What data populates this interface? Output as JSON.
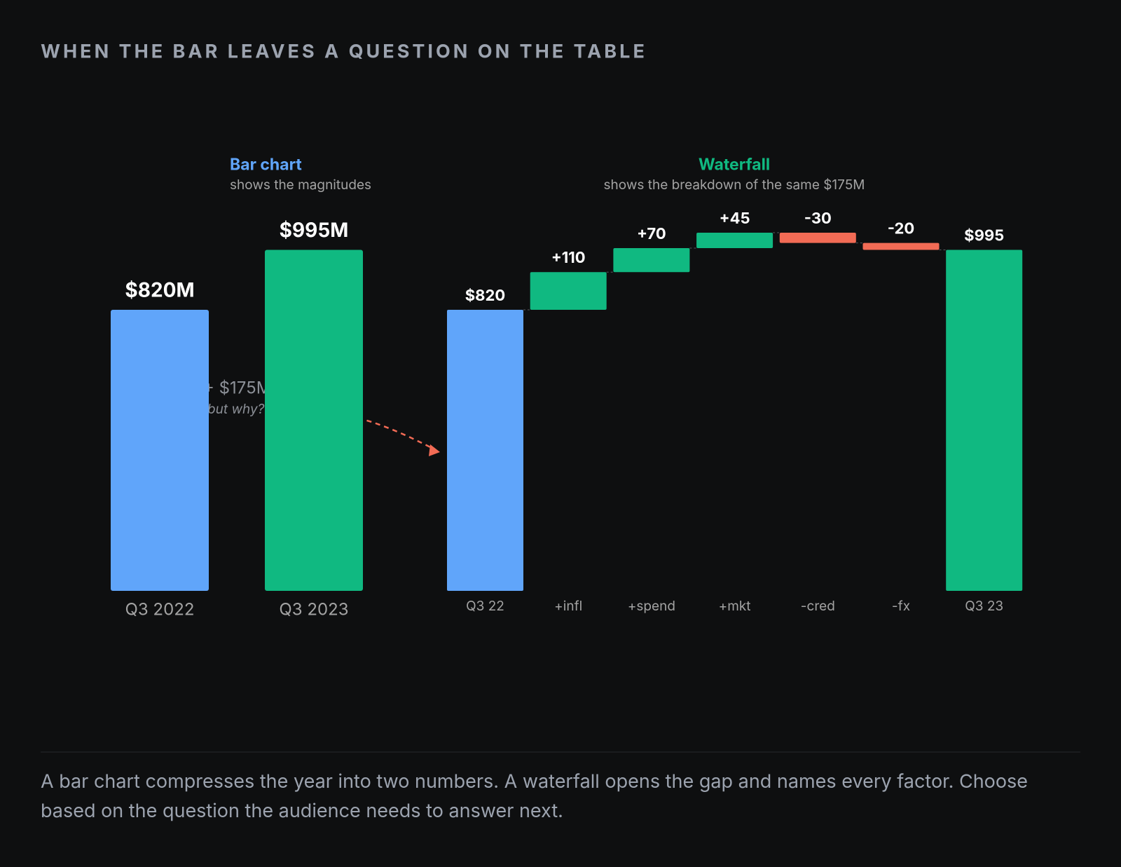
{
  "header": {
    "title": "WHEN THE BAR LEAVES A QUESTION ON THE TABLE"
  },
  "chart_data": [
    {
      "type": "bar",
      "title": "Bar chart",
      "subtitle": "shows the magnitudes",
      "categories": [
        "Q3 2022",
        "Q3 2023"
      ],
      "values": [
        820,
        995
      ],
      "value_labels": [
        "$820M",
        "$995M"
      ],
      "colors": [
        "#60a5fa",
        "#10b981"
      ],
      "annotations": [
        "+ $175M",
        "but why?"
      ]
    },
    {
      "type": "waterfall",
      "title": "Waterfall",
      "subtitle": "shows the breakdown of the same $175M",
      "categories": [
        "Q3 22",
        "+infl",
        "+spend",
        "+mkt",
        "-cred",
        "-fx",
        "Q3 23"
      ],
      "values": [
        820,
        110,
        70,
        45,
        -30,
        -20,
        995
      ],
      "value_labels": [
        "$820",
        "+110",
        "+70",
        "+45",
        "-30",
        "-20",
        "$995"
      ],
      "measures": [
        "absolute",
        "relative",
        "relative",
        "relative",
        "relative",
        "relative",
        "total"
      ],
      "colors": [
        "#60a5fa",
        "#10b981",
        "#10b981",
        "#10b981",
        "#f26b55",
        "#f26b55",
        "#10b981"
      ]
    }
  ],
  "caption": "A bar chart compresses the year into two numbers. A waterfall opens the gap and names every factor. Choose based on the question the audience needs to answer next."
}
